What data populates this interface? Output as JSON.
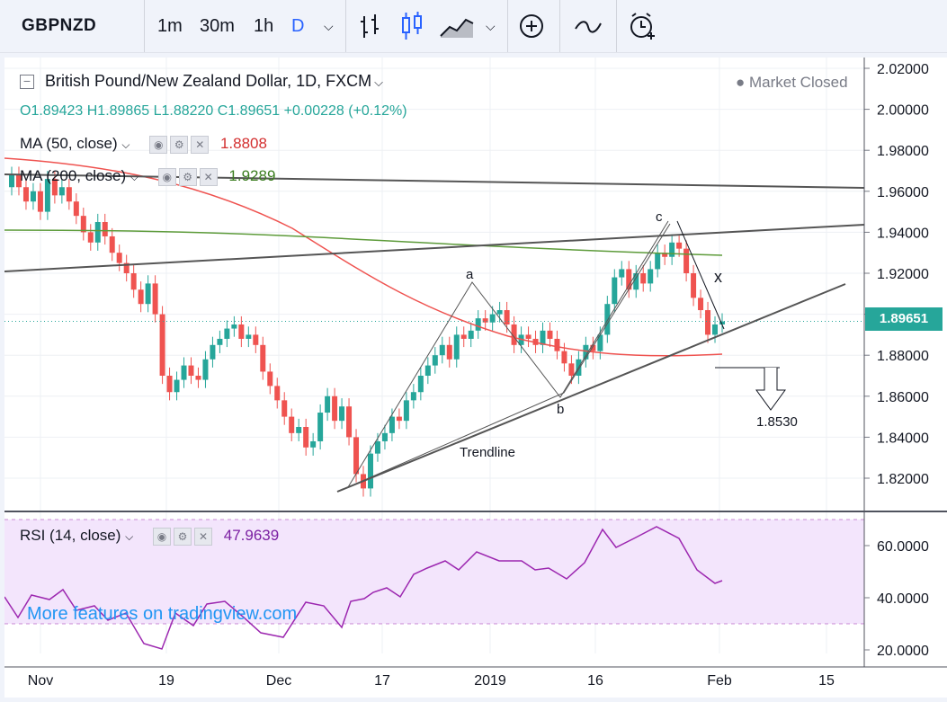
{
  "toolbar": {
    "symbol": "GBPNZD",
    "intervals": [
      "1m",
      "30m",
      "1h",
      "D"
    ],
    "active_interval": "D"
  },
  "legend": {
    "title": "British Pound/New Zealand Dollar, 1D, FXCM",
    "open": "O1.89423",
    "high": "H1.89865",
    "low": "L1.88220",
    "close": "C1.89651",
    "change": "+0.00228 (+0.12%)",
    "status": "Market Closed",
    "ma50_label": "MA (50, close)",
    "ma50_value": "1.8808",
    "ma200_label": "MA (200, close)",
    "ma200_value": "1.9289",
    "rsi_label": "RSI (14, close)",
    "rsi_value": "47.9639"
  },
  "colors": {
    "up": "#26a69a",
    "down": "#ef5350",
    "ma50": "#ef5350",
    "ma200": "#5d9b3a",
    "rsi": "#9c27b0",
    "rsi_band": "#f3e5fc",
    "accent": "#2962ff"
  },
  "chart_data": {
    "type": "candlestick",
    "price_axis": [
      "2.02000",
      "2.00000",
      "1.98000",
      "1.96000",
      "1.94000",
      "1.92000",
      "1.90000",
      "1.88000",
      "1.86000",
      "1.84000",
      "1.82000"
    ],
    "ylim": [
      1.81,
      2.025
    ],
    "time_axis": [
      "Nov",
      "19",
      "Dec",
      "17",
      "2019",
      "16",
      "Feb",
      "15"
    ],
    "last_price": "1.89651",
    "annotations": {
      "wave_a": "a",
      "wave_b": "b",
      "wave_c": "c",
      "x": "x",
      "trendline": "Trendline",
      "target": "1.8530"
    },
    "rsi_axis": [
      "60.0000",
      "40.0000",
      "20.0000"
    ],
    "rsi_band": [
      30,
      70
    ]
  },
  "watermark": "More features on tradingview.com"
}
